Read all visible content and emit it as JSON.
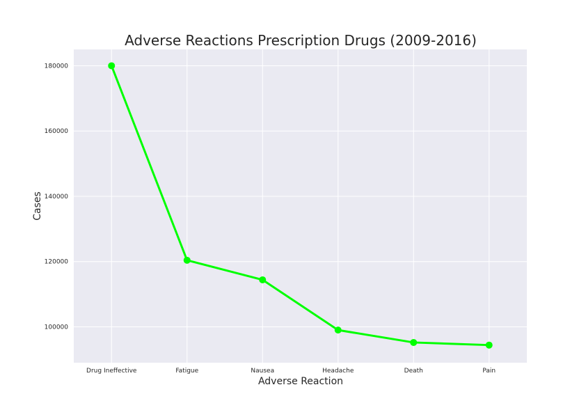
{
  "chart_data": {
    "type": "line",
    "title": "Adverse Reactions Prescription Drugs (2009-2016)",
    "xlabel": "Adverse Reaction",
    "ylabel": "Cases",
    "categories": [
      "Drug Ineffective",
      "Fatigue",
      "Nausea",
      "Headache",
      "Death",
      "Pain"
    ],
    "values": [
      180000,
      120400,
      114400,
      99000,
      95200,
      94400
    ],
    "ylim": [
      89000,
      185000
    ],
    "yticks": [
      100000,
      120000,
      140000,
      160000,
      180000
    ],
    "ytick_labels": [
      "100000",
      "120000",
      "140000",
      "160000",
      "180000"
    ],
    "grid": true,
    "colors": {
      "line": "#00ff00",
      "plot_background": "#eaeaf2",
      "grid": "#ffffff",
      "text": "#262626"
    }
  }
}
